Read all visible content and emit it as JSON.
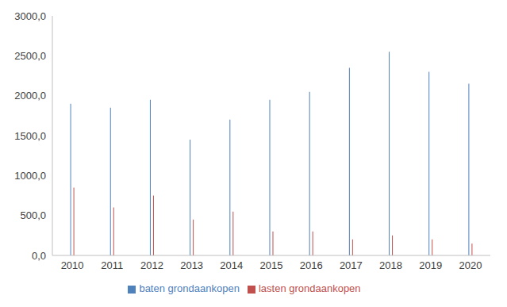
{
  "chart_data": {
    "type": "bar",
    "categories": [
      "2010",
      "2011",
      "2012",
      "2013",
      "2014",
      "2015",
      "2016",
      "2017",
      "2018",
      "2019",
      "2020"
    ],
    "series": [
      {
        "name": "baten grondaankopen",
        "color": "#4f81bd",
        "values": [
          1900,
          1850,
          1950,
          1450,
          1700,
          1950,
          2050,
          2350,
          2550,
          2300,
          2150
        ]
      },
      {
        "name": "lasten grondaankopen",
        "color": "#c0504d",
        "values": [
          850,
          600,
          750,
          450,
          550,
          300,
          300,
          200,
          250,
          200,
          150
        ]
      }
    ],
    "ylim": [
      0,
      3000
    ],
    "yticks": [
      {
        "value": 0,
        "label": "0,0"
      },
      {
        "value": 500,
        "label": "500,0"
      },
      {
        "value": 1000,
        "label": "1000,0"
      },
      {
        "value": 1500,
        "label": "1500,0"
      },
      {
        "value": 2000,
        "label": "2000,0"
      },
      {
        "value": 2500,
        "label": "2500,0"
      },
      {
        "value": 3000,
        "label": "3000,0"
      }
    ],
    "grid": false,
    "legend": "bottom"
  }
}
